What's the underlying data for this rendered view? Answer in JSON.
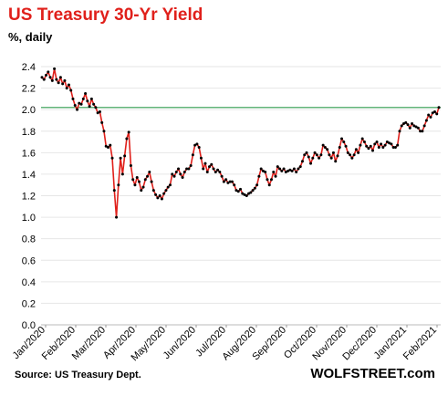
{
  "title": "US Treasury 30-Yr Yield",
  "subtitle": "%, daily",
  "source": "Source: US Treasury Dept.",
  "brand": "WOLFSTREET.com",
  "colors": {
    "title": "#e0201b",
    "line": "#e0201b",
    "marker": "#000000",
    "reference": "#2e9b4e",
    "grid": "#e6e6e6"
  },
  "chart_data": {
    "type": "line",
    "title": "US Treasury 30-Yr Yield",
    "subtitle": "%, daily",
    "xlabel": "",
    "ylabel": "",
    "ylim": [
      0,
      2.4
    ],
    "yticks": [
      "0.0",
      "0.2",
      "0.4",
      "0.6",
      "0.8",
      "1.0",
      "1.2",
      "1.4",
      "1.6",
      "1.8",
      "2.0",
      "2.2",
      "2.4"
    ],
    "xticks": [
      "Jan/2020",
      "Feb/2020",
      "Mar/2020",
      "Apr/2020",
      "May/2020",
      "Jun/2020",
      "Jul/2020",
      "Aug/2020",
      "Sep/2020",
      "Oct/2020",
      "Nov/2020",
      "Dec/2020",
      "Jan/2021",
      "Feb/2021"
    ],
    "grid": "horizontal",
    "reference_line": 2.02,
    "series": [
      {
        "values": [
          2.3,
          2.28,
          2.32,
          2.35,
          2.3,
          2.27,
          2.38,
          2.28,
          2.25,
          2.3,
          2.24,
          2.27,
          2.2,
          2.23,
          2.18,
          2.1,
          2.04,
          2.0,
          2.06,
          2.05,
          2.1,
          2.15,
          2.08,
          2.03,
          2.1,
          2.05,
          2.02,
          1.97,
          1.98,
          1.88,
          1.8,
          1.66,
          1.65,
          1.67,
          1.55,
          1.25,
          1.0,
          1.3,
          1.55,
          1.4,
          1.57,
          1.73,
          1.79,
          1.48,
          1.35,
          1.3,
          1.37,
          1.33,
          1.25,
          1.28,
          1.35,
          1.38,
          1.42,
          1.33,
          1.25,
          1.21,
          1.18,
          1.2,
          1.17,
          1.22,
          1.25,
          1.28,
          1.3,
          1.4,
          1.38,
          1.42,
          1.45,
          1.4,
          1.37,
          1.42,
          1.45,
          1.45,
          1.48,
          1.58,
          1.67,
          1.68,
          1.65,
          1.55,
          1.45,
          1.5,
          1.42,
          1.47,
          1.49,
          1.45,
          1.42,
          1.44,
          1.42,
          1.38,
          1.33,
          1.35,
          1.32,
          1.33,
          1.33,
          1.3,
          1.25,
          1.24,
          1.26,
          1.22,
          1.21,
          1.2,
          1.22,
          1.23,
          1.25,
          1.27,
          1.3,
          1.38,
          1.45,
          1.43,
          1.42,
          1.35,
          1.3,
          1.35,
          1.42,
          1.38,
          1.47,
          1.45,
          1.43,
          1.45,
          1.42,
          1.43,
          1.44,
          1.43,
          1.45,
          1.42,
          1.45,
          1.47,
          1.52,
          1.58,
          1.6,
          1.56,
          1.5,
          1.55,
          1.6,
          1.58,
          1.55,
          1.58,
          1.67,
          1.65,
          1.63,
          1.58,
          1.55,
          1.6,
          1.52,
          1.57,
          1.65,
          1.73,
          1.7,
          1.66,
          1.6,
          1.58,
          1.55,
          1.58,
          1.63,
          1.6,
          1.67,
          1.73,
          1.7,
          1.66,
          1.64,
          1.66,
          1.62,
          1.68,
          1.7,
          1.65,
          1.68,
          1.65,
          1.67,
          1.7,
          1.69,
          1.68,
          1.65,
          1.65,
          1.67,
          1.8,
          1.85,
          1.87,
          1.88,
          1.86,
          1.83,
          1.87,
          1.85,
          1.84,
          1.83,
          1.8,
          1.8,
          1.85,
          1.9,
          1.95,
          1.93,
          1.97,
          1.98,
          1.96,
          2.02
        ]
      }
    ]
  }
}
